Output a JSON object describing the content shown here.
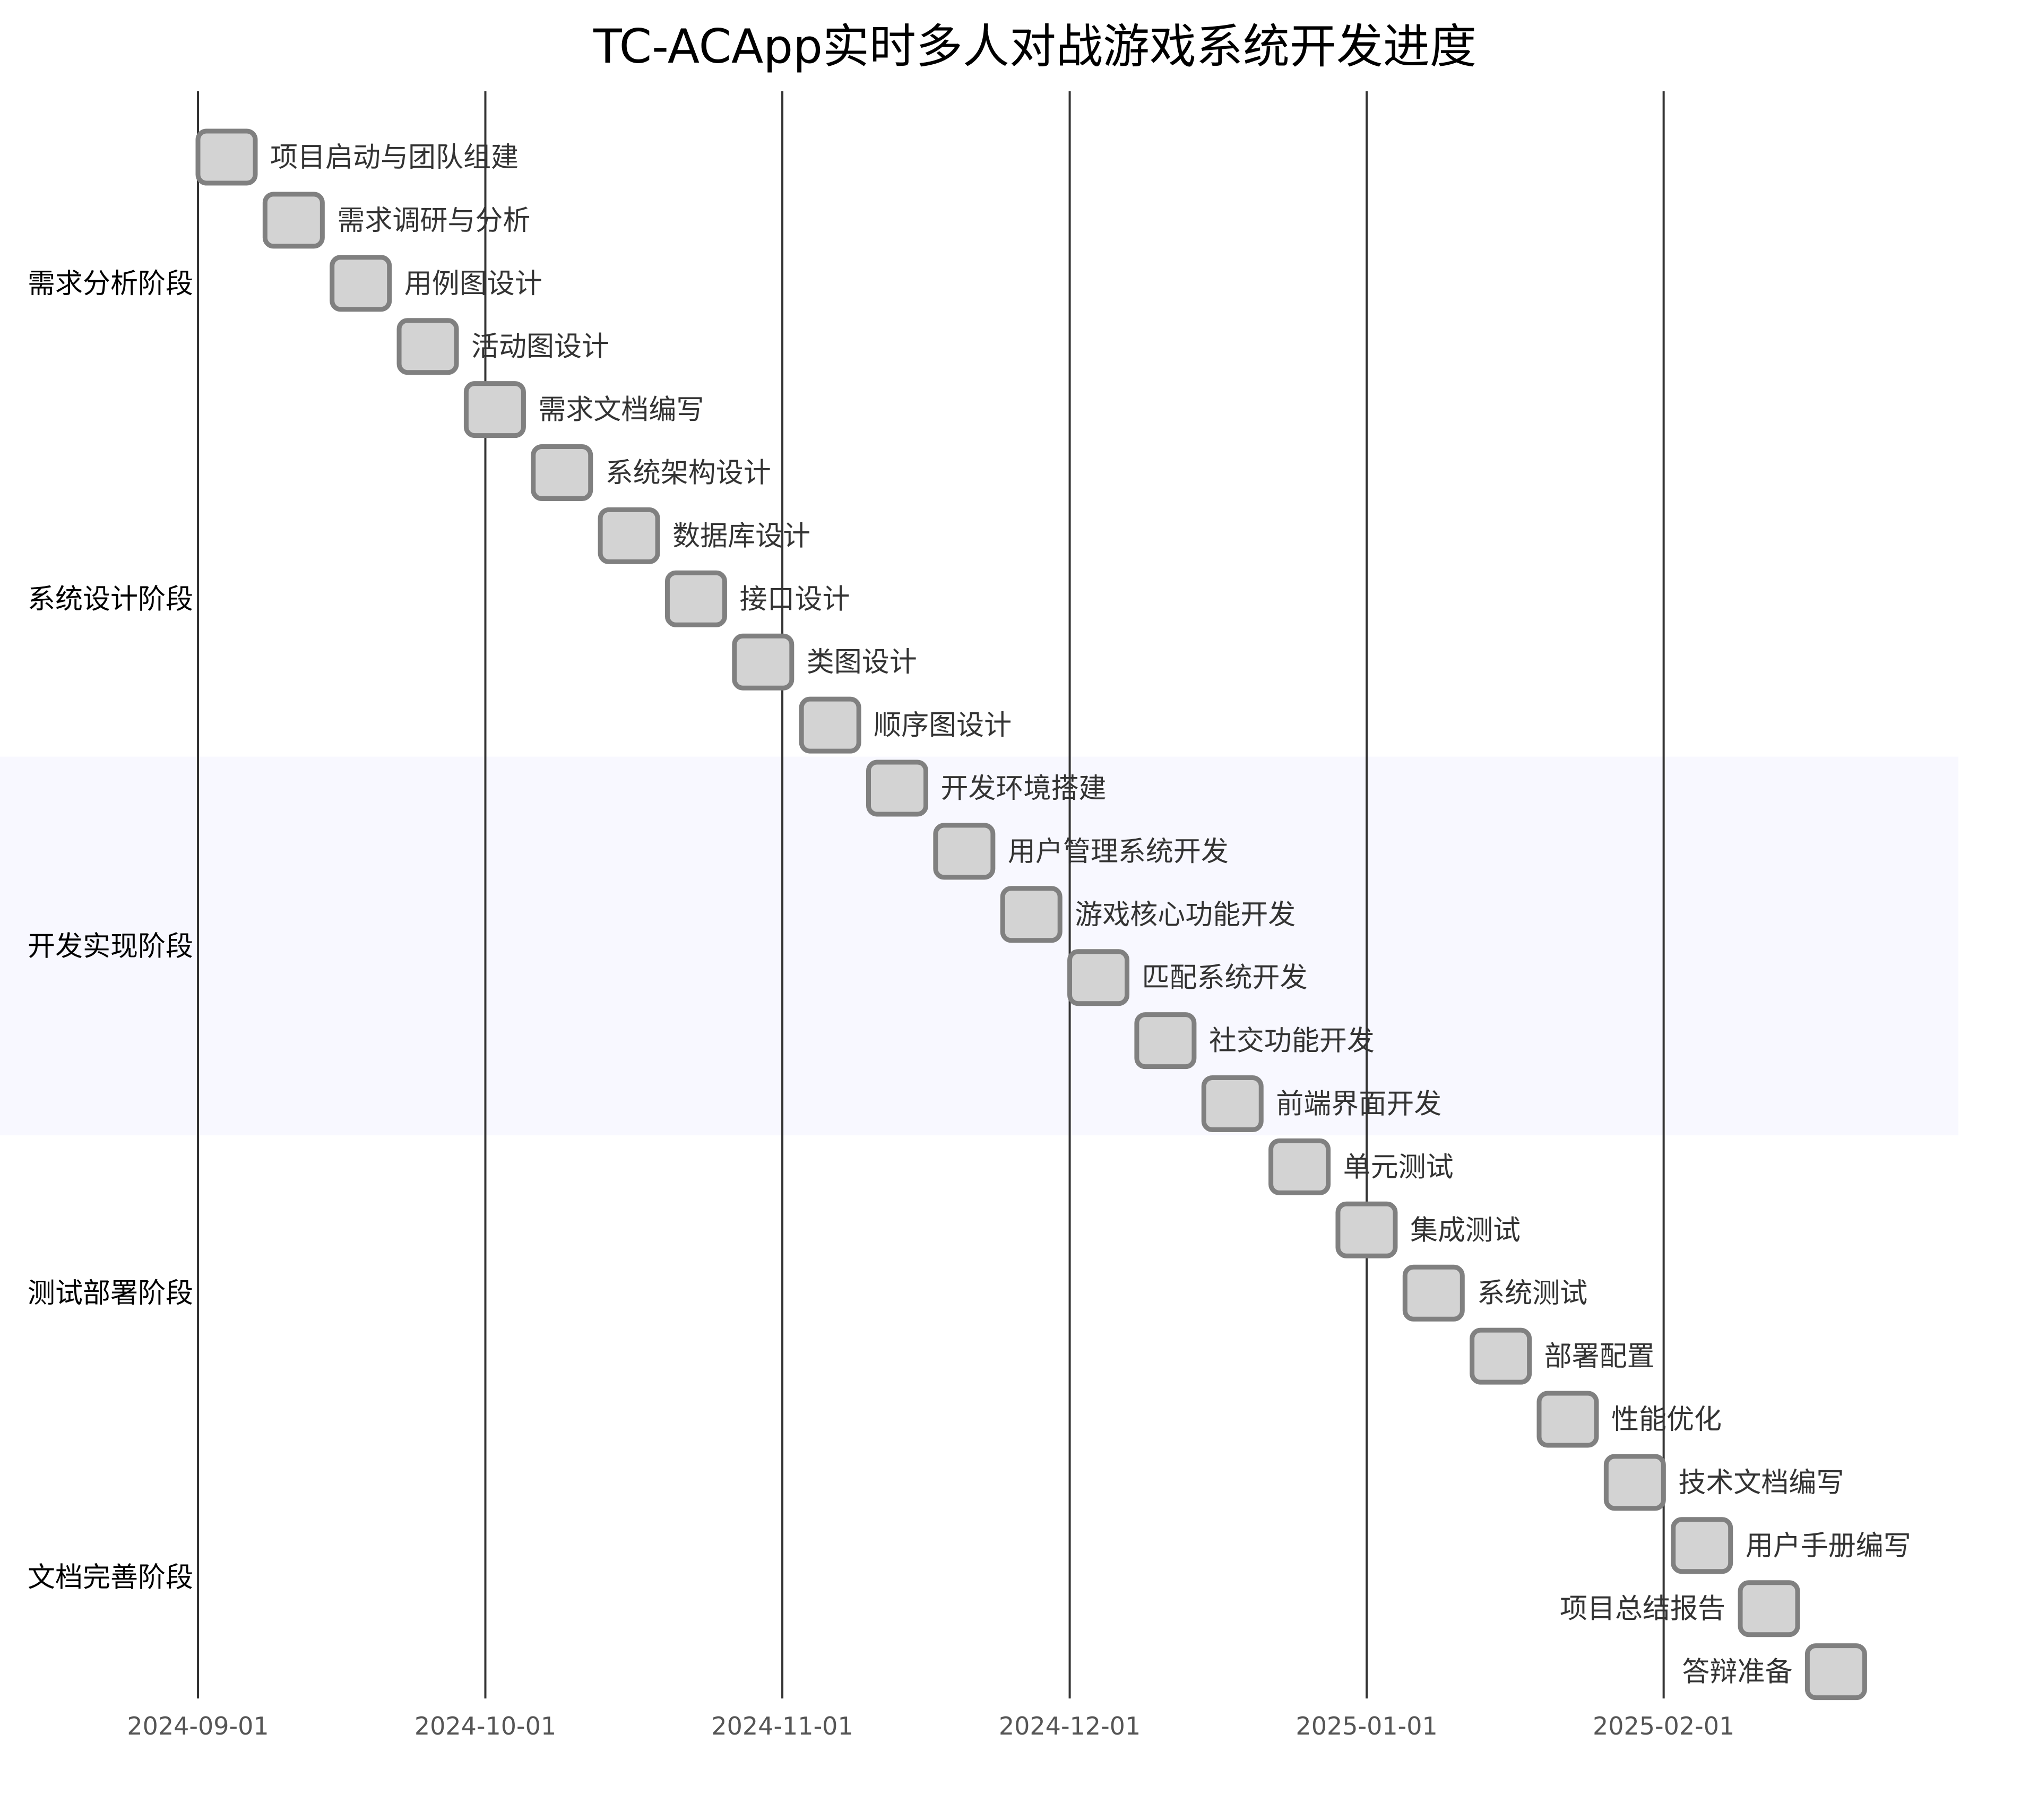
{
  "chart_data": {
    "type": "gantt",
    "title": "TC-ACApp实时多人对战游戏系统开发进度",
    "x_axis": {
      "type": "date",
      "range": [
        "2024-09-01",
        "2025-02-28"
      ],
      "ticks": [
        "2024-09-01",
        "2024-10-01",
        "2024-11-01",
        "2024-12-01",
        "2025-01-01",
        "2025-02-01"
      ]
    },
    "colors": {
      "task_fill": "#d3d3d3",
      "task_stroke": "#808080",
      "highlight_band": "#f8f8ff",
      "gridline": "#333333"
    },
    "sections": [
      {
        "name": "需求分析阶段",
        "highlighted": false,
        "task_count": 5
      },
      {
        "name": "系统设计阶段",
        "highlighted": false,
        "task_count": 5
      },
      {
        "name": "开发实现阶段",
        "highlighted": true,
        "task_count": 6
      },
      {
        "name": "测试部署阶段",
        "highlighted": false,
        "task_count": 5
      },
      {
        "name": "文档完善阶段",
        "highlighted": false,
        "task_count": 4
      }
    ],
    "tasks": [
      {
        "name": "项目启动与团队组建",
        "section": "需求分析阶段",
        "start": "2024-09-01",
        "end": "2024-09-07"
      },
      {
        "name": "需求调研与分析",
        "section": "需求分析阶段",
        "start": "2024-09-08",
        "end": "2024-09-14"
      },
      {
        "name": "用例图设计",
        "section": "需求分析阶段",
        "start": "2024-09-15",
        "end": "2024-09-21"
      },
      {
        "name": "活动图设计",
        "section": "需求分析阶段",
        "start": "2024-09-22",
        "end": "2024-09-28"
      },
      {
        "name": "需求文档编写",
        "section": "需求分析阶段",
        "start": "2024-09-29",
        "end": "2024-10-05"
      },
      {
        "name": "系统架构设计",
        "section": "系统设计阶段",
        "start": "2024-10-06",
        "end": "2024-10-12"
      },
      {
        "name": "数据库设计",
        "section": "系统设计阶段",
        "start": "2024-10-13",
        "end": "2024-10-19"
      },
      {
        "name": "接口设计",
        "section": "系统设计阶段",
        "start": "2024-10-20",
        "end": "2024-10-26"
      },
      {
        "name": "类图设计",
        "section": "系统设计阶段",
        "start": "2024-10-27",
        "end": "2024-11-02"
      },
      {
        "name": "顺序图设计",
        "section": "系统设计阶段",
        "start": "2024-11-03",
        "end": "2024-11-09"
      },
      {
        "name": "开发环境搭建",
        "section": "开发实现阶段",
        "start": "2024-11-10",
        "end": "2024-11-16"
      },
      {
        "name": "用户管理系统开发",
        "section": "开发实现阶段",
        "start": "2024-11-17",
        "end": "2024-11-23"
      },
      {
        "name": "游戏核心功能开发",
        "section": "开发实现阶段",
        "start": "2024-11-24",
        "end": "2024-11-30"
      },
      {
        "name": "匹配系统开发",
        "section": "开发实现阶段",
        "start": "2024-12-01",
        "end": "2024-12-07"
      },
      {
        "name": "社交功能开发",
        "section": "开发实现阶段",
        "start": "2024-12-08",
        "end": "2024-12-14"
      },
      {
        "name": "前端界面开发",
        "section": "开发实现阶段",
        "start": "2024-12-15",
        "end": "2024-12-21"
      },
      {
        "name": "单元测试",
        "section": "测试部署阶段",
        "start": "2024-12-22",
        "end": "2024-12-28"
      },
      {
        "name": "集成测试",
        "section": "测试部署阶段",
        "start": "2024-12-29",
        "end": "2025-01-04"
      },
      {
        "name": "系统测试",
        "section": "测试部署阶段",
        "start": "2025-01-05",
        "end": "2025-01-11"
      },
      {
        "name": "部署配置",
        "section": "测试部署阶段",
        "start": "2025-01-12",
        "end": "2025-01-18"
      },
      {
        "name": "性能优化",
        "section": "测试部署阶段",
        "start": "2025-01-19",
        "end": "2025-01-25"
      },
      {
        "name": "技术文档编写",
        "section": "文档完善阶段",
        "start": "2025-01-26",
        "end": "2025-02-01"
      },
      {
        "name": "用户手册编写",
        "section": "文档完善阶段",
        "start": "2025-02-02",
        "end": "2025-02-08"
      },
      {
        "name": "项目总结报告",
        "section": "文档完善阶段",
        "start": "2025-02-09",
        "end": "2025-02-15",
        "label_side": "left"
      },
      {
        "name": "答辩准备",
        "section": "文档完善阶段",
        "start": "2025-02-16",
        "end": "2025-02-22",
        "label_side": "left"
      }
    ]
  }
}
